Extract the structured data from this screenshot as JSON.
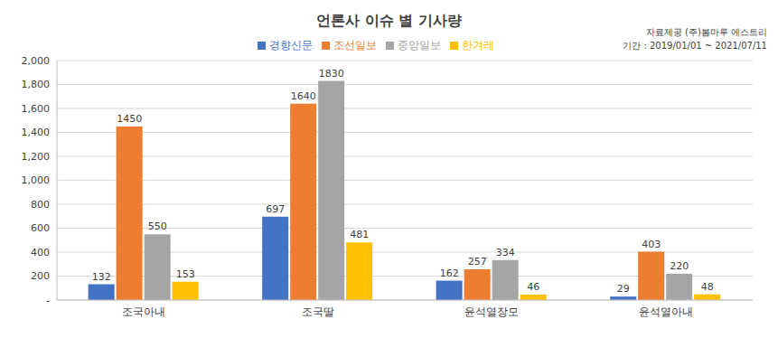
{
  "chart_data": {
    "type": "bar",
    "title": "언론사 이슈 별 기사량",
    "annotations": [
      "자료제공 (주)봄마루 에스트리",
      "기간 : 2019/01/01 ~ 2021/07/11"
    ],
    "categories": [
      "조국아내",
      "조국딸",
      "윤석열장모",
      "윤석열아내"
    ],
    "series": [
      {
        "name": "경향신문",
        "color": "#4472c4",
        "values": [
          132,
          697,
          162,
          29
        ]
      },
      {
        "name": "조선일보",
        "color": "#ed7d31",
        "values": [
          1450,
          1640,
          257,
          403
        ]
      },
      {
        "name": "중앙일보",
        "color": "#a5a5a5",
        "values": [
          550,
          1830,
          334,
          220
        ]
      },
      {
        "name": "한겨레",
        "color": "#ffc000",
        "values": [
          153,
          481,
          46,
          48
        ]
      }
    ],
    "ylim": [
      0,
      2000
    ],
    "yticks": [
      {
        "value": 0,
        "label": "-"
      },
      200,
      400,
      600,
      800,
      {
        "value": 1000,
        "label": "1,000"
      },
      {
        "value": 1200,
        "label": "1,200"
      },
      {
        "value": 1400,
        "label": "1,400"
      },
      {
        "value": 1600,
        "label": "1,600"
      },
      {
        "value": 1800,
        "label": "1,800"
      },
      {
        "value": 2000,
        "label": "2,000"
      }
    ],
    "grid": true,
    "legend": "top",
    "data_labels": true
  }
}
